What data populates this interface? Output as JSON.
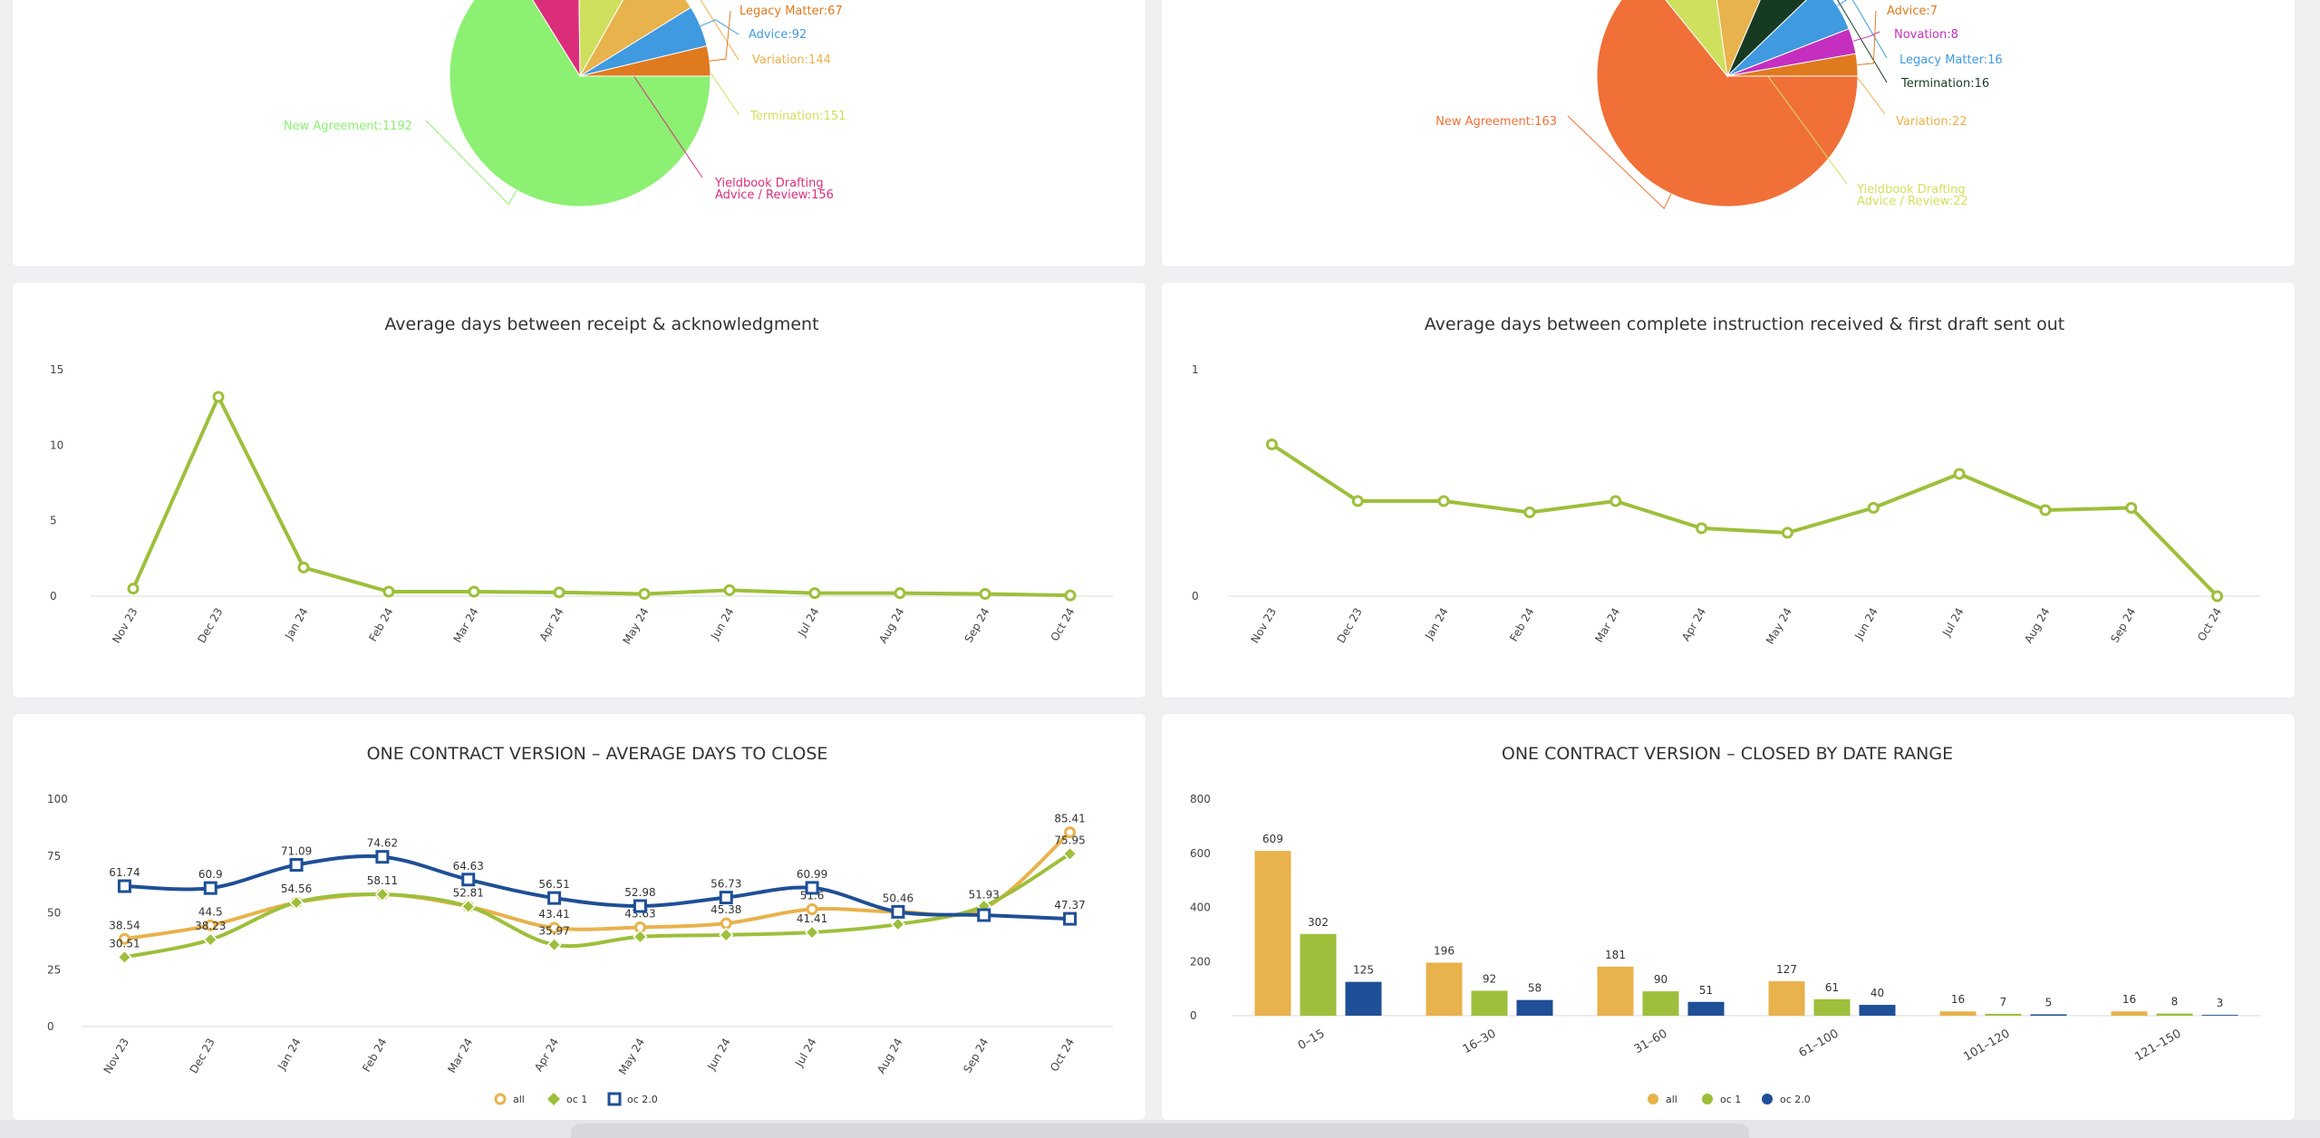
{
  "panels": [
    {
      "id": "p1"
    },
    {
      "id": "p2"
    },
    {
      "id": "p3"
    },
    {
      "id": "p4"
    },
    {
      "id": "p5"
    },
    {
      "id": "p6"
    }
  ],
  "chart_data": [
    {
      "type": "pie",
      "title": "",
      "slices": [
        {
          "label": "New Agreement:1192",
          "value": 1192,
          "color": "#8cf072"
        },
        {
          "label": "Yieldbook Drafting Advice / Review:156",
          "value": 156,
          "color": "#db2e7a"
        },
        {
          "label": "Termination:151",
          "value": 151,
          "color": "#cfe05f"
        },
        {
          "label": "Variation:144",
          "value": 144,
          "color": "#e8b24c"
        },
        {
          "label": "Advice:92",
          "value": 92,
          "color": "#3f9ae0"
        },
        {
          "label": "Legacy Matter:67",
          "value": 67,
          "color": "#e07a1f"
        }
      ]
    },
    {
      "type": "pie",
      "title": "",
      "slices": [
        {
          "label": "New Agreement:163",
          "value": 163,
          "color": "#f07038"
        },
        {
          "label": "Yieldbook Drafting Advice / Review:22",
          "value": 22,
          "color": "#cfe05f"
        },
        {
          "label": "Variation:22",
          "value": 22,
          "color": "#e8b24c"
        },
        {
          "label": "Termination:16",
          "value": 16,
          "color": "#173b22"
        },
        {
          "label": "Legacy Matter:16",
          "value": 16,
          "color": "#3f9ae0"
        },
        {
          "label": "Novation:8",
          "value": 8,
          "color": "#c42fbf"
        },
        {
          "label": "Advice:7",
          "value": 7,
          "color": "#e07a1f"
        }
      ]
    },
    {
      "type": "line",
      "title": "Average days between receipt & acknowledgment",
      "categories": [
        "Nov 23",
        "Dec 23",
        "Jan 24",
        "Feb 24",
        "Mar 24",
        "Apr 24",
        "May 24",
        "Jun 24",
        "Jul 24",
        "Aug 24",
        "Sep 24",
        "Oct 24"
      ],
      "series": [
        {
          "values": [
            0.5,
            13.2,
            1.9,
            0.3,
            0.3,
            0.25,
            0.15,
            0.4,
            0.2,
            0.2,
            0.15,
            0.05
          ],
          "color": "#9dbf3b"
        }
      ],
      "yticks": [
        "0",
        "5",
        "10",
        "15"
      ],
      "ylim": [
        0,
        15
      ]
    },
    {
      "type": "line",
      "title": "Average days between complete instruction received & first draft sent out",
      "categories": [
        "Nov 23",
        "Dec 23",
        "Jan 24",
        "Feb 24",
        "Mar 24",
        "Apr 24",
        "May 24",
        "Jun 24",
        "Jul 24",
        "Aug 24",
        "Sep 24",
        "Oct 24"
      ],
      "series": [
        {
          "values": [
            0.67,
            0.42,
            0.42,
            0.37,
            0.42,
            0.3,
            0.28,
            0.39,
            0.54,
            0.38,
            0.39,
            0.0
          ],
          "color": "#9dbf3b"
        }
      ],
      "yticks": [
        "0",
        "1"
      ],
      "ylim": [
        0,
        1
      ]
    },
    {
      "type": "line",
      "title": "ONE CONTRACT VERSION – AVERAGE DAYS TO CLOSE",
      "categories": [
        "Nov 23",
        "Dec 23",
        "Jan 24",
        "Feb 24",
        "Mar 24",
        "Apr 24",
        "May 24",
        "Jun 24",
        "Jul 24",
        "Aug 24",
        "Sep 24",
        "Oct 24"
      ],
      "yticks": [
        "0",
        "25",
        "50",
        "75",
        "100"
      ],
      "ylim": [
        0,
        100
      ],
      "legend": "bottom",
      "series": [
        {
          "name": "all",
          "color": "#e8b24c",
          "marker": "circle",
          "values": [
            38.54,
            44.5,
            54.56,
            58.11,
            52.81,
            43.41,
            43.63,
            45.38,
            51.6,
            50.46,
            51.93,
            85.41
          ],
          "labels": [
            "38.54",
            "44.5",
            "54.56",
            "58.11",
            "52.81",
            "43.41",
            "43.63",
            "45.38",
            "51.6",
            "",
            "51.93",
            "85.41"
          ]
        },
        {
          "name": "oc 1",
          "color": "#9dbf3b",
          "marker": "diamond",
          "values": [
            30.51,
            38.23,
            54.56,
            58.11,
            52.81,
            35.97,
            39.5,
            40.3,
            41.41,
            45.0,
            53.0,
            75.95
          ],
          "labels": [
            "30.51",
            "38.23",
            "",
            "",
            "",
            "35.97",
            "",
            "",
            "41.41",
            "",
            "",
            "75.95"
          ]
        },
        {
          "name": "oc 2.0",
          "color": "#1f4f96",
          "marker": "square",
          "values": [
            61.74,
            60.9,
            71.09,
            74.62,
            64.63,
            56.51,
            52.98,
            56.73,
            60.99,
            50.46,
            49.0,
            47.37
          ],
          "labels": [
            "61.74",
            "60.9",
            "71.09",
            "74.62",
            "64.63",
            "56.51",
            "52.98",
            "56.73",
            "60.99",
            "50.46",
            "",
            "47.37"
          ]
        }
      ]
    },
    {
      "type": "bar",
      "title": "ONE CONTRACT VERSION – CLOSED BY DATE RANGE",
      "categories": [
        "0–15",
        "16–30",
        "31–60",
        "61–100",
        "101–120",
        "121–150"
      ],
      "yticks": [
        "0",
        "200",
        "400",
        "600",
        "800"
      ],
      "ylim": [
        0,
        800
      ],
      "legend": "bottom",
      "series": [
        {
          "name": "all",
          "color": "#e8b24c",
          "values": [
            609,
            196,
            181,
            127,
            16,
            16
          ]
        },
        {
          "name": "oc 1",
          "color": "#9dbf3b",
          "values": [
            302,
            92,
            90,
            61,
            7,
            8
          ]
        },
        {
          "name": "oc 2.0",
          "color": "#1f4f96",
          "values": [
            125,
            58,
            51,
            40,
            5,
            3
          ]
        }
      ]
    }
  ]
}
